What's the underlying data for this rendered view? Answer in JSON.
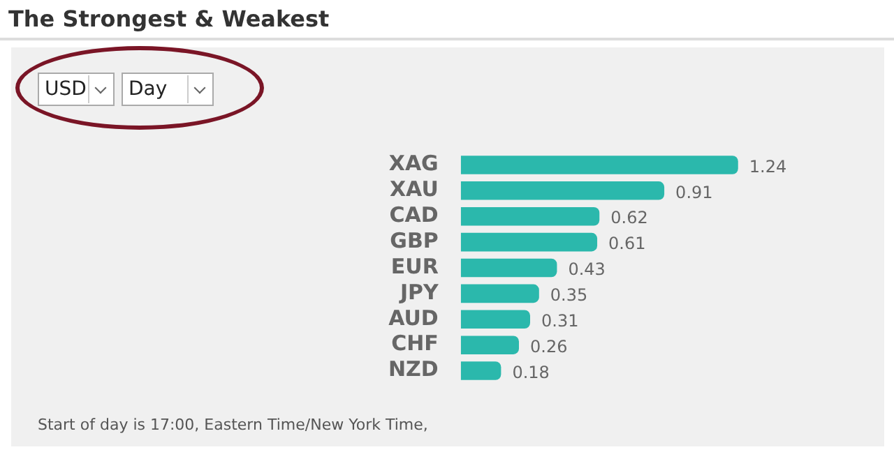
{
  "chart_data": {
    "type": "bar",
    "orientation": "horizontal",
    "title": "The Strongest & Weakest",
    "categories": [
      "XAG",
      "XAU",
      "CAD",
      "GBP",
      "EUR",
      "JPY",
      "AUD",
      "CHF",
      "NZD"
    ],
    "values": [
      1.24,
      0.91,
      0.62,
      0.61,
      0.43,
      0.35,
      0.31,
      0.26,
      0.18
    ],
    "color": "#2bb8ac",
    "data_labels": true,
    "grid": false,
    "legend": false,
    "annotations": [
      "USD",
      "Day",
      "Start of day is 17:00, Eastern Time/New York Time,"
    ]
  }
}
